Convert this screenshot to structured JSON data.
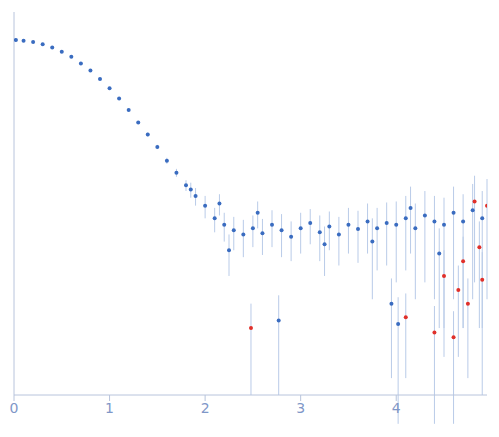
{
  "chart_data": {
    "type": "scatter",
    "log": "y",
    "tick_labels": "x",
    "grid": false,
    "xlim": [
      0,
      4.95
    ],
    "xticks": [
      0,
      1,
      2,
      3,
      4
    ],
    "ylim": [
      0.0002,
      2
    ],
    "yticks": [
      0.001,
      0.01,
      0.1,
      1
    ],
    "series": [
      {
        "color": "#3a6cc0",
        "marker": "circle",
        "x": [
          0.02,
          0.1,
          0.2,
          0.3,
          0.4,
          0.5,
          0.6,
          0.7,
          0.8,
          0.9,
          1.0,
          1.1,
          1.2,
          1.3,
          1.4,
          1.5,
          1.6,
          1.7,
          1.8,
          1.85,
          1.9,
          2.0,
          2.1,
          2.15,
          2.2,
          2.25,
          2.3,
          2.4,
          2.5,
          2.55,
          2.6,
          2.7,
          2.77,
          2.8,
          2.9,
          3.0,
          3.1,
          3.2,
          3.25,
          3.3,
          3.4,
          3.5,
          3.6,
          3.7,
          3.75,
          3.8,
          3.9,
          3.95,
          4.0,
          4.02,
          4.1,
          4.15,
          4.2,
          4.3,
          4.4,
          4.45,
          4.5,
          4.6,
          4.7,
          4.8,
          4.9
        ],
        "values": [
          1.02,
          1.0,
          0.97,
          0.92,
          0.85,
          0.77,
          0.68,
          0.58,
          0.49,
          0.4,
          0.32,
          0.25,
          0.19,
          0.14,
          0.105,
          0.078,
          0.056,
          0.042,
          0.031,
          0.028,
          0.024,
          0.019,
          0.014,
          0.02,
          0.012,
          0.0065,
          0.0105,
          0.0095,
          0.011,
          0.016,
          0.0098,
          0.012,
          0.0012,
          0.0105,
          0.009,
          0.011,
          0.0125,
          0.01,
          0.0075,
          0.0115,
          0.0095,
          0.012,
          0.0108,
          0.013,
          0.008,
          0.011,
          0.0125,
          0.0018,
          0.012,
          0.0011,
          0.014,
          0.018,
          0.011,
          0.015,
          0.013,
          0.006,
          0.012,
          0.016,
          0.013,
          0.017,
          0.014
        ],
        "errors": [
          0.05,
          0.005,
          0.005,
          0.005,
          0.005,
          0.005,
          0.005,
          0.005,
          0.005,
          0.005,
          0.005,
          0.005,
          0.005,
          0.005,
          0.005,
          0.004,
          0.004,
          0.004,
          0.004,
          0.005,
          0.005,
          0.005,
          0.004,
          0.005,
          0.004,
          0.003,
          0.004,
          0.004,
          0.004,
          0.005,
          0.004,
          0.005,
          0.001,
          0.005,
          0.004,
          0.005,
          0.005,
          0.005,
          0.004,
          0.005,
          0.005,
          0.006,
          0.006,
          0.007,
          0.006,
          0.007,
          0.008,
          0.0015,
          0.009,
          0.001,
          0.01,
          0.012,
          0.009,
          0.012,
          0.011,
          0.005,
          0.011,
          0.014,
          0.012,
          0.015,
          0.013
        ]
      },
      {
        "color": "#e0302a",
        "marker": "circle",
        "x": [
          2.48,
          4.1,
          4.4,
          4.5,
          4.6,
          4.65,
          4.7,
          4.75,
          4.82,
          4.87,
          4.9,
          4.95
        ],
        "values": [
          0.001,
          0.0013,
          0.0009,
          0.0035,
          0.0008,
          0.0025,
          0.005,
          0.0018,
          0.021,
          0.007,
          0.0032,
          0.019
        ],
        "errors": [
          0.0008,
          0.001,
          0.0008,
          0.003,
          0.0007,
          0.002,
          0.004,
          0.0015,
          0.018,
          0.006,
          0.003,
          0.017
        ]
      }
    ]
  }
}
